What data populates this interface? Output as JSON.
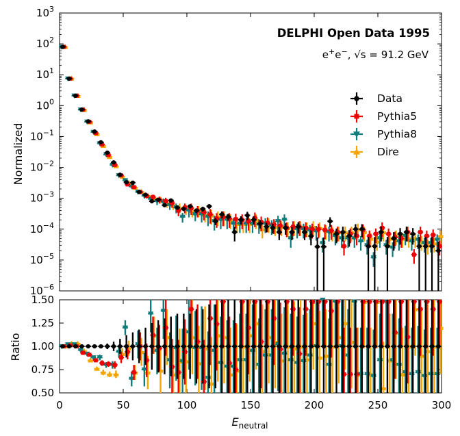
{
  "chart_data": {
    "type": "scatter",
    "title": "DELPHI Open Data 1995",
    "subtitle": "e+e−, √s = 91.2 GeV",
    "xlabel": "E_neutral",
    "xlabel_main": "E",
    "xlabel_sub": "neutral",
    "xlim": [
      0,
      300
    ],
    "x_ticks": [
      0,
      50,
      100,
      150,
      200,
      250,
      300
    ],
    "top_panel": {
      "ylabel": "Normalized",
      "yscale": "log",
      "ylim_exp": [
        -6,
        3
      ],
      "y_tick_exponents": [
        3,
        2,
        1,
        0,
        -1,
        -2,
        -3,
        -4,
        -5,
        -6
      ],
      "y_tick_base": "10"
    },
    "bottom_panel": {
      "ylabel": "Ratio",
      "ylim": [
        0.5,
        1.5
      ],
      "y_ticks": [
        "0.50",
        "0.75",
        "1.00",
        "1.25",
        "1.50"
      ],
      "reference_line": 1.0
    },
    "legend": {
      "location": "right",
      "entries": [
        "Data",
        "Pythia5",
        "Pythia8",
        "Dire"
      ]
    },
    "x_bins": [
      2.5,
      7.5,
      12.5,
      17.5,
      22.5,
      27.5,
      32.5,
      37.5,
      42.5,
      47.5,
      52.5,
      57.5,
      62.5,
      67.5,
      72.5,
      77.5,
      82.5,
      87.5,
      92.5,
      97.5,
      102.5,
      107.5,
      112.5,
      117.5,
      122.5,
      127.5,
      132.5,
      137.5,
      142.5,
      147.5,
      152.5,
      157.5,
      162.5,
      167.5,
      172.5,
      177.5,
      182.5,
      187.5,
      192.5,
      197.5,
      202.5,
      207.5,
      212.5,
      217.5,
      222.5,
      227.5,
      232.5,
      237.5,
      242.5,
      247.5,
      252.5,
      257.5,
      262.5,
      267.5,
      272.5,
      277.5,
      282.5,
      287.5,
      292.5,
      297.5
    ],
    "series": [
      {
        "name": "Data",
        "color": "#000000",
        "marker": "circle",
        "values": [
          80,
          7.5,
          2.1,
          0.75,
          0.31,
          0.145,
          0.065,
          0.03,
          0.0145,
          0.0058,
          0.0033,
          0.0032,
          0.0016,
          0.0013,
          0.0008,
          0.0009,
          0.0006,
          0.00085,
          0.0005,
          0.00045,
          0.00055,
          0.0004,
          0.00045,
          0.00055,
          0.00018,
          0.0003,
          0.00025,
          8e-05,
          0.0002,
          0.00028,
          0.0002,
          0.00015,
          0.00012,
          0.00011,
          8e-05,
          0.00011,
          8e-05,
          0.00012,
          8e-05,
          6e-05,
          2.7e-05,
          2.7e-05,
          0.00018,
          7e-05,
          8e-05,
          6e-05,
          0.0001,
          0.0001,
          2.8e-05,
          2.8e-05,
          8e-05,
          2.8e-05,
          5e-05,
          7e-05,
          8e-05,
          7e-05,
          2.8e-05,
          2.8e-05,
          2.8e-05,
          2e-05
        ],
        "rel_err": [
          0.01,
          0.01,
          0.01,
          0.01,
          0.01,
          0.02,
          0.02,
          0.02,
          0.03,
          0.04,
          0.05,
          0.05,
          0.07,
          0.08,
          0.1,
          0.1,
          0.12,
          0.12,
          0.15,
          0.15,
          0.15,
          0.18,
          0.18,
          0.18,
          0.25,
          0.25,
          0.25,
          0.5,
          0.3,
          0.3,
          0.3,
          0.3,
          0.35,
          0.35,
          0.45,
          0.4,
          0.45,
          0.4,
          0.45,
          0.5,
          0.99,
          0.99,
          0.35,
          0.5,
          0.5,
          0.55,
          0.45,
          0.45,
          0.99,
          0.99,
          0.5,
          0.99,
          0.6,
          0.55,
          0.5,
          0.55,
          0.99,
          0.99,
          0.99,
          0.99
        ],
        "ratio": [
          1,
          1,
          1,
          1,
          1,
          1,
          1,
          1,
          1,
          1,
          1,
          1,
          1,
          1,
          1,
          1,
          1,
          1,
          1,
          1,
          1,
          1,
          1,
          1,
          1,
          1,
          1,
          1,
          1,
          1,
          1,
          1,
          1,
          1,
          1,
          1,
          1,
          1,
          1,
          1,
          1,
          1,
          1,
          1,
          1,
          1,
          1,
          1,
          1,
          1,
          1,
          1,
          1,
          1,
          1,
          1,
          1,
          1,
          1,
          1
        ],
        "ratio_err": [
          0.01,
          0.01,
          0.01,
          0.01,
          0.01,
          0.02,
          0.02,
          0.03,
          0.05,
          0.08,
          0.12,
          0.15,
          0.18,
          0.2,
          0.25,
          0.28,
          0.3,
          0.32,
          0.35,
          0.35,
          0.35,
          0.4,
          0.4,
          0.45,
          0.45,
          0.5,
          0.5,
          0.5,
          0.5,
          0.5,
          0.5,
          0.5,
          0.5,
          0.5,
          0.5,
          0.5,
          0.5,
          0.5,
          0.5,
          0.5,
          0.5,
          0.5,
          0.5,
          0.5,
          0.5,
          0.5,
          0.5,
          0.5,
          0.5,
          0.5,
          0.5,
          0.5,
          0.5,
          0.5,
          0.5,
          0.5,
          0.5,
          0.5,
          0.5,
          0.5
        ]
      },
      {
        "name": "Pythia5",
        "color": "#ee0000",
        "marker": "square",
        "values": [
          80,
          7.5,
          2.1,
          0.74,
          0.3,
          0.13,
          0.055,
          0.025,
          0.012,
          0.0055,
          0.0028,
          0.0023,
          0.0016,
          0.0012,
          0.0011,
          0.0009,
          0.0008,
          0.0007,
          0.0004,
          0.0005,
          0.00048,
          0.0004,
          0.00035,
          0.0003,
          0.00022,
          0.00025,
          0.00022,
          0.00021,
          0.0002,
          0.00018,
          0.00023,
          0.00017,
          0.00016,
          0.00014,
          0.00013,
          0.00011,
          0.00012,
          0.00012,
          0.00011,
          0.0001,
          0.0001,
          9.5e-05,
          9e-05,
          8e-05,
          2.8e-05,
          7e-05,
          6e-05,
          9.5e-05,
          6e-05,
          7e-05,
          0.00011,
          7e-05,
          5.5e-05,
          5e-05,
          8e-05,
          1.5e-05,
          8e-05,
          6e-05,
          6.5e-05,
          2.8e-05
        ],
        "ratio": [
          1.0,
          1.01,
          1.0,
          0.93,
          0.91,
          0.85,
          0.82,
          0.81,
          0.8,
          0.88,
          0.94,
          0.72,
          1.0,
          0.85,
          1.12,
          0.98,
          1.2,
          0.78,
          0.72,
          0.94,
          1.4,
          1.05,
          0.62,
          1.3,
          1.24,
          1.48,
          0.82,
          0.75,
          1.48,
          1.2,
          1.48,
          1.05,
          1.48,
          1.3,
          0.97,
          1.48,
          1.4,
          0.92,
          1.4,
          1.48,
          1.48,
          1.48,
          1.38,
          1.48,
          0.7,
          0.7,
          0.7,
          1.48,
          1.48,
          1.48,
          1.48,
          1.48,
          1.15,
          1.48,
          1.1,
          1.48,
          1.4,
          1.48,
          1.4,
          1.48
        ],
        "ratio_err": [
          0.01,
          0.01,
          0.02,
          0.02,
          0.02,
          0.02,
          0.03,
          0.03,
          0.04,
          0.06,
          0.08,
          0.08,
          0.15,
          0.18,
          0.2,
          0.25,
          0.3,
          0.3,
          0.35,
          0.35,
          0.4,
          0.4,
          0.45,
          0.5,
          0.5,
          0.5,
          0.5,
          0.5,
          0.5,
          0.5,
          0.5,
          0.5,
          0.5,
          0.5,
          0.5,
          0.5,
          0.5,
          0.5,
          0.5,
          0.5,
          0.5,
          0.5,
          0.5,
          0.5,
          0.5,
          0.5,
          0.5,
          0.5,
          0.5,
          0.5,
          0.5,
          0.5,
          0.5,
          0.5,
          0.5,
          0.5,
          0.5,
          0.5,
          0.5,
          0.5
        ]
      },
      {
        "name": "Pythia8",
        "color": "#0f7b7b",
        "marker": "triangle_down",
        "values": [
          80,
          7.5,
          2.1,
          0.74,
          0.3,
          0.14,
          0.06,
          0.026,
          0.012,
          0.0055,
          0.0038,
          0.0024,
          0.0016,
          0.0012,
          0.00095,
          0.0008,
          0.00075,
          0.0006,
          0.0005,
          0.00025,
          0.0004,
          0.0003,
          0.0003,
          0.00025,
          0.00018,
          0.0002,
          0.0002,
          0.00015,
          0.00015,
          0.00015,
          0.00015,
          0.00014,
          0.00015,
          0.00013,
          0.00018,
          0.0002,
          5e-05,
          0.0001,
          0.0001,
          9e-05,
          8.5e-05,
          3.5e-05,
          8e-05,
          6e-05,
          5e-05,
          5e-05,
          5e-05,
          4e-05,
          3e-05,
          1.2e-05,
          5e-05,
          3e-05,
          2.5e-05,
          4e-05,
          6e-05,
          4e-05,
          4.5e-05,
          3.5e-05,
          3.5e-05,
          4.5e-05
        ],
        "ratio": [
          1.0,
          1.02,
          1.02,
          0.96,
          0.92,
          0.88,
          0.88,
          0.8,
          0.8,
          0.94,
          1.2,
          0.65,
          1.02,
          0.75,
          1.35,
          0.95,
          1.38,
          0.85,
          0.98,
          0.84,
          1.15,
          0.98,
          0.98,
          0.66,
          0.95,
          0.82,
          0.78,
          0.78,
          0.85,
          0.85,
          0.95,
          0.8,
          0.9,
          0.9,
          1.02,
          0.92,
          0.85,
          0.82,
          0.84,
          0.9,
          1.0,
          1.5,
          0.8,
          1.48,
          1.0,
          0.9,
          1.48,
          0.7,
          0.7,
          0.68,
          0.85,
          1.48,
          0.85,
          0.8,
          0.72,
          0.7,
          0.72,
          0.68,
          0.7,
          0.7
        ],
        "ratio_err": [
          0.01,
          0.01,
          0.02,
          0.02,
          0.02,
          0.02,
          0.03,
          0.03,
          0.04,
          0.06,
          0.08,
          0.08,
          0.15,
          0.18,
          0.2,
          0.25,
          0.3,
          0.3,
          0.35,
          0.35,
          0.4,
          0.4,
          0.45,
          0.5,
          0.5,
          0.5,
          0.5,
          0.5,
          0.5,
          0.5,
          0.5,
          0.5,
          0.5,
          0.5,
          0.5,
          0.5,
          0.5,
          0.5,
          0.5,
          0.5,
          0.5,
          0.5,
          0.5,
          0.5,
          0.5,
          0.5,
          0.5,
          0.5,
          0.5,
          0.5,
          0.5,
          0.5,
          0.5,
          0.5,
          0.5,
          0.5,
          0.5,
          0.5,
          0.5,
          0.5
        ]
      },
      {
        "name": "Dire",
        "color": "#f5a500",
        "marker": "triangle_up",
        "values": [
          80,
          7.6,
          2.1,
          0.73,
          0.29,
          0.12,
          0.05,
          0.022,
          0.011,
          0.005,
          0.0032,
          0.0022,
          0.0016,
          0.0012,
          0.001,
          0.0009,
          0.0007,
          0.0006,
          0.0005,
          0.00045,
          0.0004,
          0.0004,
          0.0003,
          0.00028,
          0.00025,
          0.00025,
          0.0002,
          0.00015,
          0.00015,
          0.00015,
          0.0002,
          0.0001,
          0.00015,
          0.00012,
          0.00012,
          0.00011,
          0.00012,
          0.00012,
          0.00011,
          0.00012,
          0.00011,
          9e-05,
          8e-05,
          8e-05,
          8e-05,
          8e-05,
          0.0001,
          8e-05,
          5e-05,
          4e-05,
          8e-05,
          5e-05,
          6e-05,
          5e-05,
          5e-05,
          5e-05,
          4e-05,
          3e-05,
          3.5e-05,
          6e-05
        ],
        "ratio": [
          1.0,
          1.03,
          1.03,
          0.95,
          0.85,
          0.76,
          0.72,
          0.7,
          0.7,
          0.92,
          0.98,
          0.72,
          0.94,
          0.72,
          1.12,
          0.74,
          1.1,
          0.7,
          0.84,
          0.84,
          1.1,
          0.82,
          0.98,
          0.6,
          1.12,
          1.1,
          0.7,
          0.74,
          1.0,
          1.12,
          1.25,
          0.95,
          1.1,
          1.05,
          0.85,
          1.0,
          0.98,
          1.0,
          0.86,
          1.25,
          0.88,
          0.9,
          1.0,
          1.1,
          1.25,
          1.05,
          0.7,
          1.48,
          0.7,
          1.48,
          0.55,
          0.85,
          1.15,
          0.7,
          1.0,
          1.4,
          0.9,
          0.95,
          1.0,
          1.2
        ],
        "ratio_err": [
          0.01,
          0.01,
          0.02,
          0.02,
          0.02,
          0.02,
          0.03,
          0.03,
          0.04,
          0.06,
          0.08,
          0.08,
          0.15,
          0.18,
          0.2,
          0.25,
          0.3,
          0.3,
          0.35,
          0.35,
          0.4,
          0.4,
          0.45,
          0.5,
          0.5,
          0.5,
          0.5,
          0.5,
          0.5,
          0.5,
          0.5,
          0.5,
          0.5,
          0.5,
          0.5,
          0.5,
          0.5,
          0.5,
          0.5,
          0.5,
          0.5,
          0.5,
          0.5,
          0.5,
          0.5,
          0.5,
          0.5,
          0.5,
          0.5,
          0.5,
          0.5,
          0.5,
          0.5,
          0.5,
          0.5,
          0.5,
          0.5,
          0.5,
          0.5,
          0.5
        ]
      }
    ]
  }
}
